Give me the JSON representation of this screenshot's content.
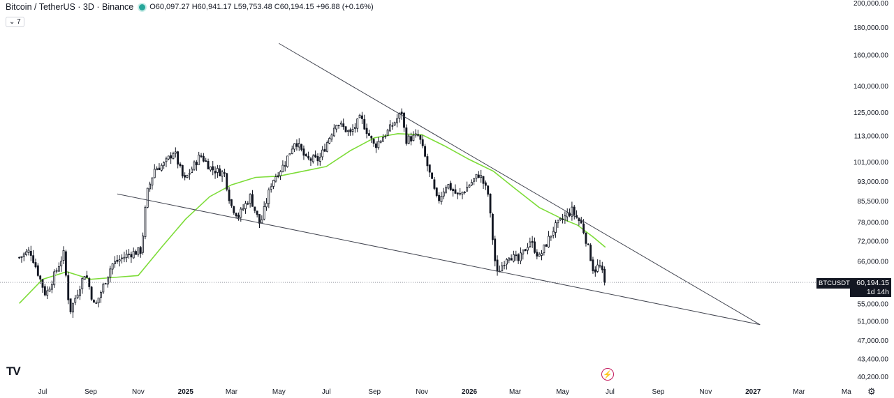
{
  "header": {
    "symbol": "Bitcoin / TetherUS · 3D · Binance",
    "ohlc": "O60,097.27 H60,941.17 L59,753.48 C60,194.15 +96.88 (+0.16%)",
    "indicator_toggle": "7"
  },
  "price_badge": {
    "symbol": "BTCUSDT",
    "price": "60,194.15",
    "countdown": "1d 14h"
  },
  "colors": {
    "up": "#131722",
    "down": "#131722",
    "ma": "#7ddc38",
    "trendline": "#434651",
    "dotted": "#9598a1"
  },
  "icons": [
    "tradingview-logo-icon",
    "flash-icon",
    "gear-icon"
  ],
  "chart_data": {
    "type": "candlestick",
    "scale": "log",
    "y_ticks": [
      40200,
      43400,
      47000,
      51000,
      55000,
      60194.15,
      66000,
      72000,
      78000,
      85500,
      93000,
      101000,
      113000,
      125000,
      140000,
      160000,
      180000,
      200000
    ],
    "y_tick_labels": [
      "40,200.00",
      "43,400.00",
      "47,000.00",
      "51,000.00",
      "55,000.00",
      "",
      "66,000.00",
      "72,000.00",
      "78,000.00",
      "85,500.00",
      "93,000.00",
      "101,000.00",
      "113,000.00",
      "125,000.00",
      "140,000.00",
      "160,000.00",
      "180,000.00",
      "200,000.00"
    ],
    "x_tick_labels": [
      "Jul",
      "Sep",
      "Nov",
      "2025",
      "Mar",
      "May",
      "Jul",
      "Sep",
      "Nov",
      "2026",
      "Mar",
      "May",
      "Jul",
      "Sep",
      "Nov",
      "2027",
      "Mar",
      "Ma"
    ],
    "x_tick_dates": [
      "2024-07-01",
      "2024-09-01",
      "2024-11-01",
      "2025-01-01",
      "2025-03-01",
      "2025-05-01",
      "2025-07-01",
      "2025-09-01",
      "2025-11-01",
      "2026-01-01",
      "2026-03-01",
      "2026-05-01",
      "2026-07-01",
      "2026-09-01",
      "2026-11-01",
      "2027-01-01",
      "2027-03-01",
      "2027-05-01"
    ],
    "close_path": [
      [
        "2024-06-01",
        67000
      ],
      [
        "2024-06-15",
        69000
      ],
      [
        "2024-07-05",
        57000
      ],
      [
        "2024-07-28",
        68000
      ],
      [
        "2024-08-05",
        53000
      ],
      [
        "2024-08-25",
        63000
      ],
      [
        "2024-09-06",
        54000
      ],
      [
        "2024-09-28",
        65000
      ],
      [
        "2024-10-20",
        68000
      ],
      [
        "2024-11-05",
        69000
      ],
      [
        "2024-11-12",
        88000
      ],
      [
        "2024-11-22",
        98000
      ],
      [
        "2024-12-05",
        100000
      ],
      [
        "2024-12-17",
        106000
      ],
      [
        "2024-12-30",
        93000
      ],
      [
        "2025-01-20",
        104000
      ],
      [
        "2025-02-03",
        98000
      ],
      [
        "2025-02-20",
        96000
      ],
      [
        "2025-02-28",
        84000
      ],
      [
        "2025-03-10",
        80000
      ],
      [
        "2025-03-25",
        87000
      ],
      [
        "2025-04-07",
        77000
      ],
      [
        "2025-04-22",
        93000
      ],
      [
        "2025-05-08",
        100000
      ],
      [
        "2025-05-22",
        111000
      ],
      [
        "2025-06-05",
        102000
      ],
      [
        "2025-06-22",
        102000
      ],
      [
        "2025-07-14",
        120000
      ],
      [
        "2025-08-01",
        114000
      ],
      [
        "2025-08-14",
        122000
      ],
      [
        "2025-09-01",
        108000
      ],
      [
        "2025-09-20",
        116000
      ],
      [
        "2025-10-06",
        125000
      ],
      [
        "2025-10-11",
        111000
      ],
      [
        "2025-10-28",
        113000
      ],
      [
        "2025-11-05",
        103000
      ],
      [
        "2025-11-21",
        85000
      ],
      [
        "2025-12-03",
        92000
      ],
      [
        "2025-12-18",
        87000
      ],
      [
        "2026-01-14",
        96000
      ],
      [
        "2026-01-25",
        88000
      ],
      [
        "2026-02-05",
        62000
      ],
      [
        "2026-02-20",
        68000
      ],
      [
        "2026-03-05",
        66000
      ],
      [
        "2026-03-20",
        72000
      ],
      [
        "2026-04-01",
        67000
      ],
      [
        "2026-04-20",
        76000
      ],
      [
        "2026-05-05",
        80000
      ],
      [
        "2026-05-13",
        82000
      ],
      [
        "2026-05-26",
        77000
      ],
      [
        "2026-06-05",
        68000
      ],
      [
        "2026-06-10",
        63000
      ],
      [
        "2026-06-17",
        65000
      ],
      [
        "2026-06-25",
        60194.15
      ]
    ],
    "moving_average": [
      [
        "2024-06-01",
        55000
      ],
      [
        "2024-07-01",
        61000
      ],
      [
        "2024-08-01",
        63000
      ],
      [
        "2024-09-01",
        61000
      ],
      [
        "2024-10-01",
        61500
      ],
      [
        "2024-11-01",
        62000
      ],
      [
        "2024-12-01",
        70000
      ],
      [
        "2025-01-01",
        79000
      ],
      [
        "2025-02-01",
        87000
      ],
      [
        "2025-03-01",
        91500
      ],
      [
        "2025-04-01",
        94500
      ],
      [
        "2025-05-01",
        95000
      ],
      [
        "2025-06-01",
        97000
      ],
      [
        "2025-07-01",
        99000
      ],
      [
        "2025-08-01",
        106000
      ],
      [
        "2025-09-01",
        112000
      ],
      [
        "2025-10-01",
        114000
      ],
      [
        "2025-11-01",
        113500
      ],
      [
        "2025-12-01",
        108000
      ],
      [
        "2026-01-01",
        102000
      ],
      [
        "2026-02-01",
        97000
      ],
      [
        "2026-03-01",
        90000
      ],
      [
        "2026-04-01",
        83000
      ],
      [
        "2026-05-01",
        79000
      ],
      [
        "2026-05-20",
        77000
      ],
      [
        "2026-06-10",
        73000
      ],
      [
        "2026-06-25",
        70000
      ]
    ],
    "trendlines": [
      {
        "from": [
          "2025-05-01",
          168000
        ],
        "to": [
          "2027-01-10",
          50200
        ]
      },
      {
        "from": [
          "2024-10-05",
          88000
        ],
        "to": [
          "2027-01-10",
          50200
        ]
      }
    ],
    "last_price": 60194.15
  }
}
